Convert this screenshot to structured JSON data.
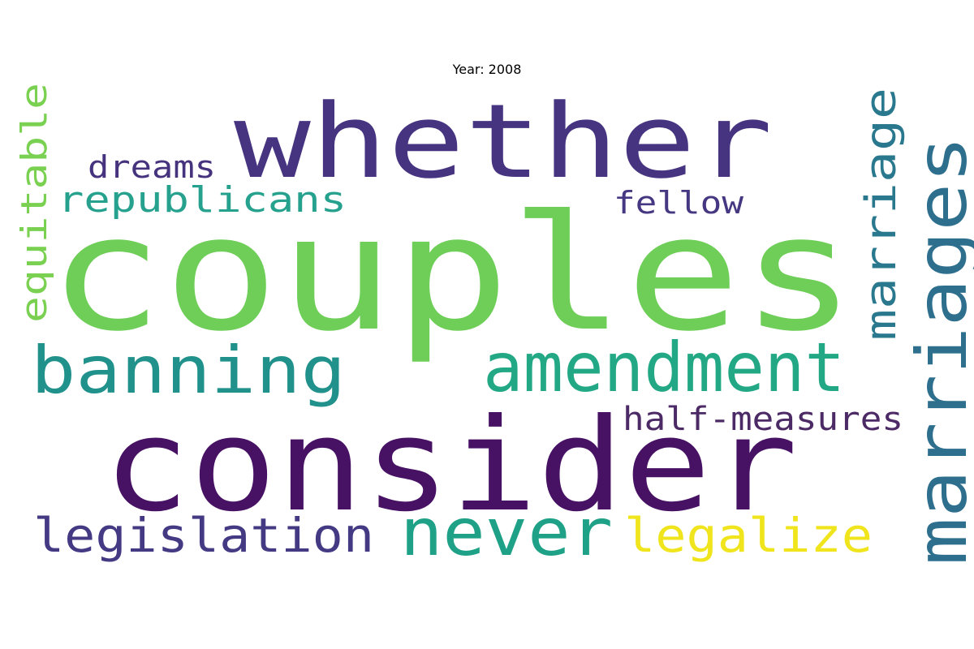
{
  "title": "Year: 2008",
  "words": [
    {
      "text": "couples",
      "color": "#6ece58"
    },
    {
      "text": "consider",
      "color": "#471164"
    },
    {
      "text": "whether",
      "color": "#463480"
    },
    {
      "text": "amendment",
      "color": "#22a884"
    },
    {
      "text": "banning",
      "color": "#21918c"
    },
    {
      "text": "marriages",
      "color": "#2e6f8e"
    },
    {
      "text": "never",
      "color": "#1fa187"
    },
    {
      "text": "legislation",
      "color": "#443983"
    },
    {
      "text": "legalize",
      "color": "#f0e51c"
    },
    {
      "text": "marriage",
      "color": "#2a788e"
    },
    {
      "text": "republicans",
      "color": "#25a18e"
    },
    {
      "text": "equitable",
      "color": "#7ad151"
    },
    {
      "text": "half-measures",
      "color": "#4c2a66"
    },
    {
      "text": "dreams",
      "color": "#46337e"
    },
    {
      "text": "fellow",
      "color": "#453781"
    }
  ]
}
